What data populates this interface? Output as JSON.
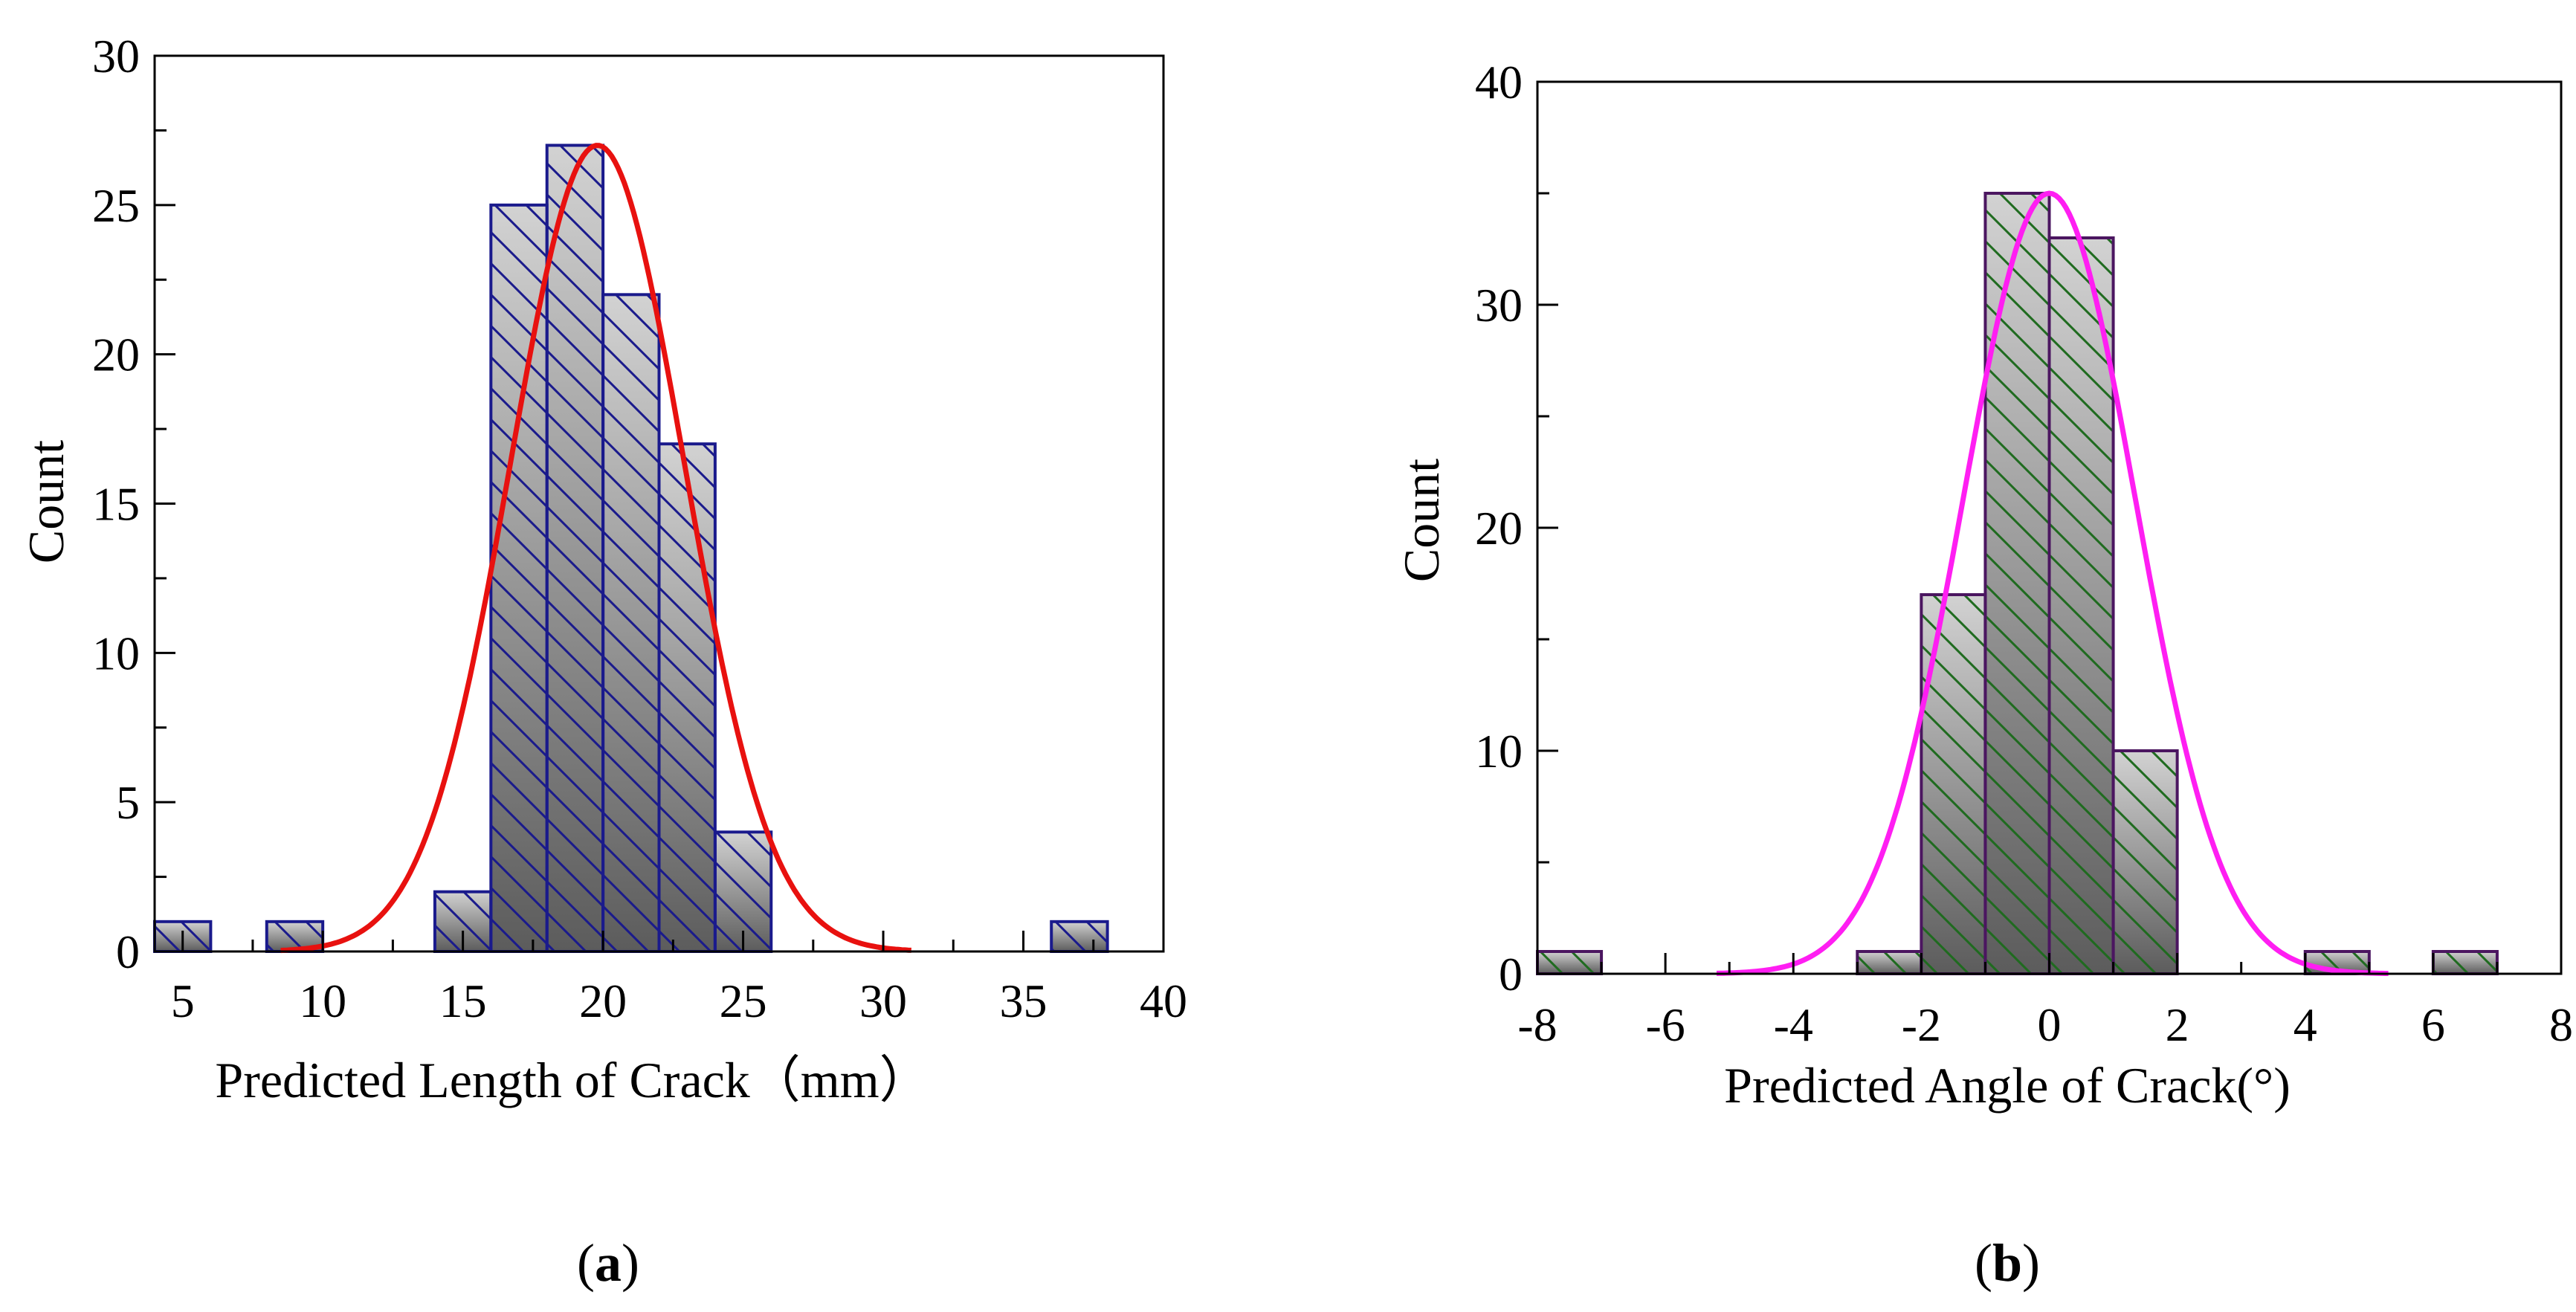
{
  "chart_data": [
    {
      "type": "bar",
      "panel_label": "a",
      "xlabel": "Predicted Length of Crack（mm）",
      "ylabel": "Count",
      "xlim": [
        4,
        40
      ],
      "ylim": [
        0,
        30
      ],
      "xticks": [
        5,
        10,
        15,
        20,
        25,
        30,
        35,
        40
      ],
      "yticks": [
        0,
        5,
        10,
        15,
        20,
        25,
        30
      ],
      "bins": [
        {
          "x0": 4,
          "x1": 6,
          "count": 1
        },
        {
          "x0": 8,
          "x1": 10,
          "count": 1
        },
        {
          "x0": 14,
          "x1": 16,
          "count": 2
        },
        {
          "x0": 16,
          "x1": 18,
          "count": 25
        },
        {
          "x0": 18,
          "x1": 20,
          "count": 27
        },
        {
          "x0": 20,
          "x1": 22,
          "count": 22
        },
        {
          "x0": 22,
          "x1": 24,
          "count": 17
        },
        {
          "x0": 24,
          "x1": 26,
          "count": 4
        },
        {
          "x0": 36,
          "x1": 38,
          "count": 1
        }
      ],
      "fit": {
        "type": "normal",
        "mean": 19.8,
        "sd": 3.1,
        "peak": 27,
        "x_from": 8.5,
        "x_to": 31
      },
      "colors": {
        "bar_edge": "#1a1a8c",
        "hatch": "#1a1a8c",
        "fit": "#e8110f",
        "fill_top": "#d2d2d2",
        "fill_bottom": "#5c5c5c"
      }
    },
    {
      "type": "bar",
      "panel_label": "b",
      "xlabel": "Predicted Angle of Crack(°)",
      "ylabel": "Count",
      "xlim": [
        -8,
        8
      ],
      "ylim": [
        0,
        40
      ],
      "xticks": [
        -8,
        -6,
        -4,
        -2,
        0,
        2,
        4,
        6,
        8
      ],
      "yticks": [
        0,
        10,
        20,
        30,
        40
      ],
      "bins": [
        {
          "x0": -8,
          "x1": -7,
          "count": 1
        },
        {
          "x0": -3,
          "x1": -2,
          "count": 1
        },
        {
          "x0": -2,
          "x1": -1,
          "count": 17
        },
        {
          "x0": -1,
          "x1": 0,
          "count": 35
        },
        {
          "x0": 0,
          "x1": 1,
          "count": 33
        },
        {
          "x0": 1,
          "x1": 2,
          "count": 10
        },
        {
          "x0": 4,
          "x1": 5,
          "count": 1
        },
        {
          "x0": 6,
          "x1": 7,
          "count": 1
        }
      ],
      "fit": {
        "type": "normal",
        "mean": 0.0,
        "sd": 1.35,
        "peak": 35,
        "x_from": -5.2,
        "x_to": 5.3
      },
      "colors": {
        "bar_edge": "#4b1660",
        "hatch": "#1f6b1f",
        "fit": "#ff1ef2",
        "fill_top": "#d2d2d2",
        "fill_bottom": "#5c5c5c"
      }
    }
  ]
}
